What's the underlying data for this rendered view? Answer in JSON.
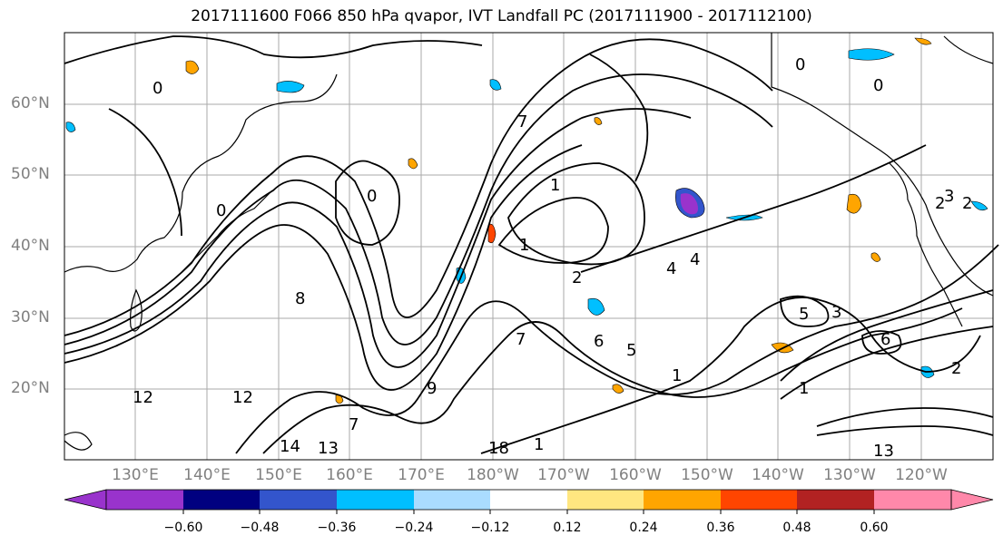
{
  "title": "2017111600 F066 850 hPa qvapor, IVT Landfall PC (2017111900 - 2017112100)",
  "lat_labels": [
    "60°N",
    "50°N",
    "40°N",
    "30°N",
    "20°N"
  ],
  "lon_labels": [
    "130°E",
    "140°E",
    "150°E",
    "160°E",
    "170°E",
    "180°W",
    "170°W",
    "160°W",
    "150°W",
    "140°W",
    "130°W",
    "120°W"
  ],
  "contour_labels": [
    "0",
    "0",
    "0",
    "0",
    "0",
    "1",
    "1",
    "1",
    "2",
    "2",
    "4",
    "4",
    "5",
    "5",
    "6",
    "6",
    "7",
    "7",
    "7",
    "8",
    "9",
    "12",
    "12",
    "13",
    "13",
    "14",
    "18",
    "1",
    "1",
    "2",
    "2",
    "3",
    "3"
  ],
  "colorbar": {
    "ticks": [
      "−0.60",
      "−0.48",
      "−0.36",
      "−0.24",
      "−0.12",
      "0.12",
      "0.24",
      "0.36",
      "0.48",
      "0.60"
    ],
    "colors": [
      "#9933cc",
      "#000080",
      "#3355cc",
      "#00bfff",
      "#aadcff",
      "#ffffff",
      "#ffe680",
      "#ffa500",
      "#ff4500",
      "#b22222",
      "#ff88aa"
    ]
  },
  "map_colors": {
    "land": "#000000",
    "grid": "#aaaaaa",
    "label_gray": "#808080"
  }
}
